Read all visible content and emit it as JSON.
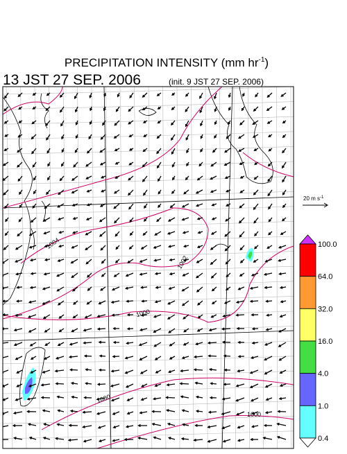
{
  "header": {
    "title": "PRECIPITATION INTENSITY (mm hr",
    "title_exponent": "-1",
    "title_close": ")",
    "valid_time": "13 JST 27 SEP. 2006",
    "init_time": "(init. 9 JST 27 SEP. 2006)"
  },
  "wind_scale": {
    "label": "20 m s",
    "exponent": "-1"
  },
  "isobars": [
    {
      "label": "1004"
    },
    {
      "label": "1002"
    },
    {
      "label": "1000"
    },
    {
      "label": "1000"
    },
    {
      "label": "1000"
    }
  ],
  "colorbar": {
    "labels": [
      "100.0",
      "64.0",
      "32.0",
      "16.0",
      "4.0",
      "1.0",
      "0.4"
    ],
    "colors": [
      "#ff0000",
      "#ff9933",
      "#ffff66",
      "#44dd44",
      "#6666ff",
      "#66ffff"
    ],
    "over_color": "#cc33ff",
    "under_color": "#ffffff"
  }
}
